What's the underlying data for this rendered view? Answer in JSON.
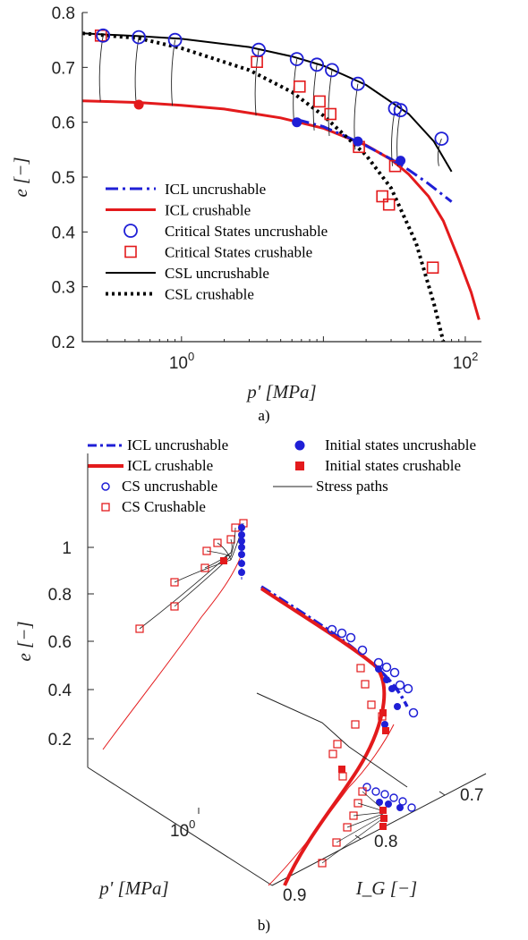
{
  "chart_data": [
    {
      "panel": "a)",
      "type": "line",
      "xlabel": "p' [MPa]",
      "ylabel": "e [−]",
      "xscale": "log",
      "xlim": [
        0.2,
        130
      ],
      "ylim": [
        0.2,
        0.8
      ],
      "xtick_labels": [
        "10^0",
        "10^2"
      ],
      "xtick_values": [
        1,
        100
      ],
      "ytick_labels": [
        "0.2",
        "0.3",
        "0.4",
        "0.5",
        "0.6",
        "0.7",
        "0.8"
      ],
      "ytick_values": [
        0.2,
        0.3,
        0.4,
        0.5,
        0.6,
        0.7,
        0.8
      ],
      "legend_position": "bottom-left",
      "colors": {
        "uncrushable": "#1f1fd6",
        "crushable": "#e31a1c",
        "csl": "#000000"
      },
      "series": [
        {
          "name": "ICL uncrushable",
          "style": "dash-dot",
          "x": [
            6.5,
            10,
            15,
            20,
            30,
            40,
            55,
            80
          ],
          "y": [
            0.605,
            0.592,
            0.572,
            0.557,
            0.533,
            0.513,
            0.488,
            0.455
          ]
        },
        {
          "name": "ICL crushable",
          "style": "solid",
          "x": [
            0.2,
            0.5,
            1,
            2,
            5,
            10,
            20,
            30,
            40,
            55,
            70,
            90,
            110,
            125
          ],
          "y": [
            0.639,
            0.636,
            0.631,
            0.624,
            0.608,
            0.589,
            0.558,
            0.532,
            0.505,
            0.465,
            0.42,
            0.35,
            0.29,
            0.24
          ]
        },
        {
          "name": "Critical States uncrushable",
          "style": "open-circle",
          "x": [
            0.28,
            0.5,
            0.9,
            3.5,
            6.5,
            9,
            11.5,
            17.5,
            32,
            35,
            68
          ],
          "y": [
            0.758,
            0.755,
            0.75,
            0.732,
            0.715,
            0.705,
            0.695,
            0.67,
            0.625,
            0.622,
            0.57
          ]
        },
        {
          "name": "Critical States crushable",
          "style": "open-square",
          "x": [
            0.27,
            3.4,
            6.8,
            9.4,
            11.2,
            17.8,
            26,
            29,
            32,
            59
          ],
          "y": [
            0.758,
            0.71,
            0.665,
            0.638,
            0.615,
            0.555,
            0.465,
            0.45,
            0.52,
            0.335
          ]
        },
        {
          "name": "CSL uncrushable",
          "style": "solid",
          "x": [
            0.2,
            0.5,
            1,
            3,
            6,
            10,
            20,
            40,
            60,
            80
          ],
          "y": [
            0.762,
            0.757,
            0.752,
            0.737,
            0.72,
            0.703,
            0.668,
            0.615,
            0.565,
            0.51
          ]
        },
        {
          "name": "CSL crushable",
          "style": "dotted",
          "x": [
            0.2,
            0.5,
            1,
            3,
            6,
            10,
            20,
            30,
            45,
            60,
            70
          ],
          "y": [
            0.762,
            0.753,
            0.735,
            0.695,
            0.655,
            0.612,
            0.54,
            0.48,
            0.38,
            0.27,
            0.2
          ]
        },
        {
          "name": "Initial states uncrushable",
          "style": "filled-circle",
          "x": [
            0.5,
            6.5,
            17.5,
            35
          ],
          "y": [
            0.632,
            0.6,
            0.565,
            0.53
          ]
        },
        {
          "name": "Stress paths",
          "style": "thin-solid",
          "x": [],
          "y": []
        }
      ]
    },
    {
      "panel": "b)",
      "type": "line",
      "projection": "3d",
      "xlabel": "p' [MPa]",
      "ylabel": "I_G [−]",
      "zlabel": "e [−]",
      "xtick_labels": [
        "10^0"
      ],
      "ytick_labels": [
        "0.7",
        "0.8",
        "0.9"
      ],
      "ztick_labels": [
        "0.2",
        "0.4",
        "0.6",
        "0.8",
        "1"
      ],
      "legend_entries": [
        {
          "name": "ICL uncrushable",
          "style": "dash-dot"
        },
        {
          "name": "Initial states uncrushable",
          "style": "filled-circle"
        },
        {
          "name": "ICL crushable",
          "style": "thick-solid"
        },
        {
          "name": "Initial states crushable",
          "style": "filled-square"
        },
        {
          "name": "CS uncrushable",
          "style": "open-circle"
        },
        {
          "name": "Stress paths",
          "style": "thin-solid"
        },
        {
          "name": "CS Crushable",
          "style": "open-square"
        }
      ]
    }
  ],
  "captions": {
    "a": "a)",
    "b": "b)"
  }
}
